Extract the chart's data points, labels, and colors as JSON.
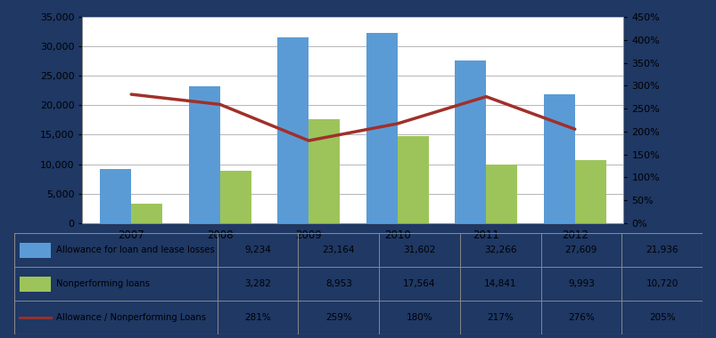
{
  "years": [
    "2007",
    "2008",
    "2009",
    "2010",
    "2011",
    "2012"
  ],
  "allowance": [
    9234,
    23164,
    31602,
    32266,
    27609,
    21936
  ],
  "nonperforming": [
    3282,
    8953,
    17564,
    14841,
    9993,
    10720
  ],
  "ratio": [
    2.81,
    2.59,
    1.8,
    2.17,
    2.76,
    2.05
  ],
  "bar_width": 0.35,
  "blue_color": "#5B9BD5",
  "green_color": "#9DC45A",
  "red_color": "#A0302A",
  "background_color": "#FFFFFF",
  "outer_bg": "#1F3864",
  "grid_color": "#AAAAAA",
  "table_rows": [
    [
      "Allowance for loan and lease losses",
      "9,234",
      "23,164",
      "31,602",
      "32,266",
      "27,609",
      "21,936"
    ],
    [
      "Nonperforming loans",
      "3,282",
      "8,953",
      "17,564",
      "14,841",
      "9,993",
      "10,720"
    ],
    [
      "Allowance / Nonperforming Loans",
      "281%",
      "259%",
      "180%",
      "217%",
      "276%",
      "205%"
    ]
  ],
  "ylim_left": [
    0,
    35000
  ],
  "ylim_right": [
    0,
    4.5
  ],
  "yticks_left": [
    0,
    5000,
    10000,
    15000,
    20000,
    25000,
    30000,
    35000
  ],
  "yticks_right": [
    0.0,
    0.5,
    1.0,
    1.5,
    2.0,
    2.5,
    3.0,
    3.5,
    4.0,
    4.5
  ]
}
